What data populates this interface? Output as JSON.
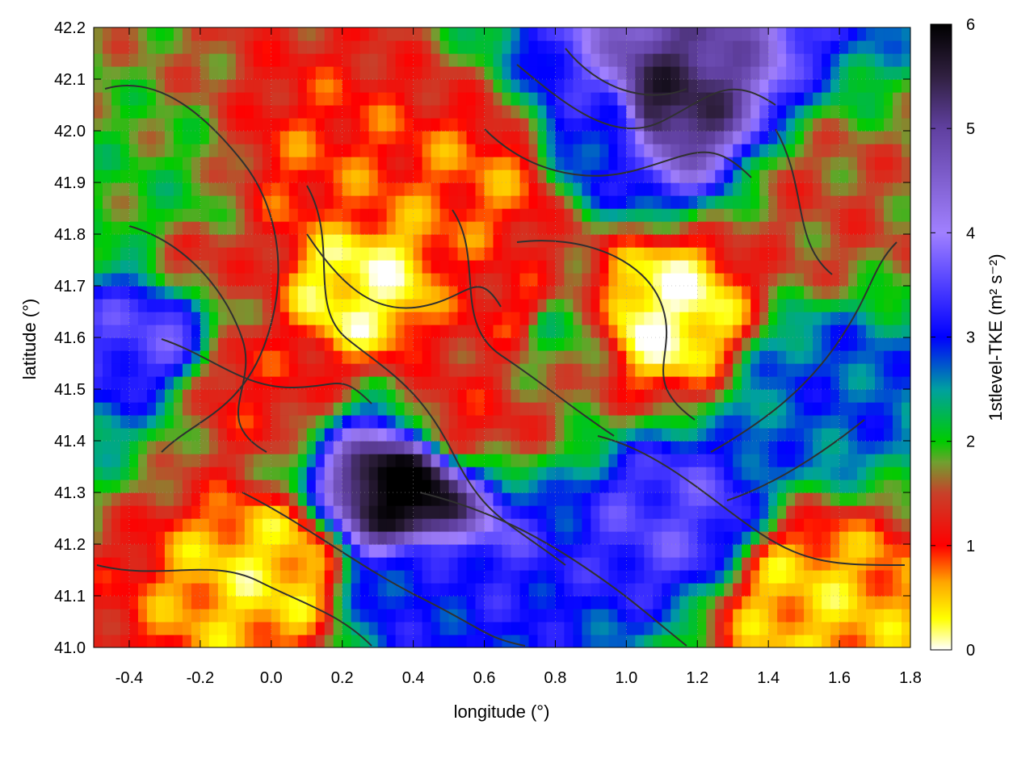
{
  "chart_data": {
    "type": "heatmap",
    "title": "",
    "xlabel": "longitude (°)",
    "ylabel": "latitude (°)",
    "xlim": [
      -0.5,
      1.8
    ],
    "ylim": [
      41.0,
      42.2
    ],
    "x_ticks": [
      {
        "value": -0.4,
        "label": "-0.4"
      },
      {
        "value": -0.2,
        "label": "-0.2"
      },
      {
        "value": 0.0,
        "label": "0.0"
      },
      {
        "value": 0.2,
        "label": "0.2"
      },
      {
        "value": 0.4,
        "label": "0.4"
      },
      {
        "value": 0.6,
        "label": "0.6"
      },
      {
        "value": 0.8,
        "label": "0.8"
      },
      {
        "value": 1.0,
        "label": "1.0"
      },
      {
        "value": 1.2,
        "label": "1.2"
      },
      {
        "value": 1.4,
        "label": "1.4"
      },
      {
        "value": 1.6,
        "label": "1.6"
      },
      {
        "value": 1.8,
        "label": "1.8"
      }
    ],
    "y_ticks": [
      {
        "value": 41.0,
        "label": "41.0"
      },
      {
        "value": 41.1,
        "label": "41.1"
      },
      {
        "value": 41.2,
        "label": "41.2"
      },
      {
        "value": 41.3,
        "label": "41.3"
      },
      {
        "value": 41.4,
        "label": "41.4"
      },
      {
        "value": 41.5,
        "label": "41.5"
      },
      {
        "value": 41.6,
        "label": "41.6"
      },
      {
        "value": 41.7,
        "label": "41.7"
      },
      {
        "value": 41.8,
        "label": "41.8"
      },
      {
        "value": 41.9,
        "label": "41.9"
      },
      {
        "value": 42.0,
        "label": "42.0"
      },
      {
        "value": 42.1,
        "label": "42.1"
      },
      {
        "value": 42.2,
        "label": "42.2"
      }
    ],
    "grid": true,
    "colorbar": {
      "label": "1stlevel-TKE (m² s⁻²)",
      "range": [
        0,
        6
      ],
      "ticks": [
        {
          "value": 0,
          "label": "0"
        },
        {
          "value": 1,
          "label": "1"
        },
        {
          "value": 2,
          "label": "2"
        },
        {
          "value": 3,
          "label": "3"
        },
        {
          "value": 4,
          "label": "4"
        },
        {
          "value": 5,
          "label": "5"
        },
        {
          "value": 6,
          "label": "6"
        }
      ],
      "color_stops": [
        {
          "value": 0.0,
          "color": "#ffffff"
        },
        {
          "value": 0.3,
          "color": "#ffff00"
        },
        {
          "value": 0.65,
          "color": "#ffa500"
        },
        {
          "value": 1.0,
          "color": "#ff0000"
        },
        {
          "value": 1.5,
          "color": "#c8402a"
        },
        {
          "value": 1.8,
          "color": "#70a030"
        },
        {
          "value": 2.0,
          "color": "#00cc00"
        },
        {
          "value": 2.5,
          "color": "#00a0a0"
        },
        {
          "value": 3.0,
          "color": "#0000ff"
        },
        {
          "value": 4.0,
          "color": "#a080ff"
        },
        {
          "value": 5.0,
          "color": "#6040a0"
        },
        {
          "value": 5.5,
          "color": "#302040"
        },
        {
          "value": 6.0,
          "color": "#000000"
        }
      ]
    },
    "field_features": [
      {
        "lon": -0.3,
        "lat": 41.85,
        "tke": 2.0
      },
      {
        "lon": -0.2,
        "lat": 41.75,
        "tke": 1.4
      },
      {
        "lon": -0.33,
        "lat": 41.62,
        "tke": 3.5
      },
      {
        "lon": -0.05,
        "lat": 41.52,
        "tke": 1.1
      },
      {
        "lon": 0.15,
        "lat": 41.9,
        "tke": 0.9
      },
      {
        "lon": 0.25,
        "lat": 41.7,
        "tke": 0.2
      },
      {
        "lon": 0.38,
        "lat": 41.3,
        "tke": 6.0
      },
      {
        "lon": 0.42,
        "lat": 41.12,
        "tke": 3.0
      },
      {
        "lon": 0.55,
        "lat": 41.45,
        "tke": 1.2
      },
      {
        "lon": 0.7,
        "lat": 41.65,
        "tke": 1.0
      },
      {
        "lon": 0.78,
        "lat": 41.62,
        "tke": 2.0
      },
      {
        "lon": 1.1,
        "lat": 42.05,
        "tke": 5.5
      },
      {
        "lon": 0.95,
        "lat": 42.0,
        "tke": 3.0
      },
      {
        "lon": 1.1,
        "lat": 41.65,
        "tke": 0.1
      },
      {
        "lon": 1.15,
        "lat": 41.25,
        "tke": 3.5
      },
      {
        "lon": 1.55,
        "lat": 41.5,
        "tke": 2.8
      },
      {
        "lon": 1.55,
        "lat": 41.85,
        "tke": 1.5
      },
      {
        "lon": 1.5,
        "lat": 41.1,
        "tke": 0.5
      },
      {
        "lon": 0.0,
        "lat": 41.15,
        "tke": 0.4
      },
      {
        "lon": 0.6,
        "lat": 41.9,
        "tke": 0.8
      }
    ]
  }
}
